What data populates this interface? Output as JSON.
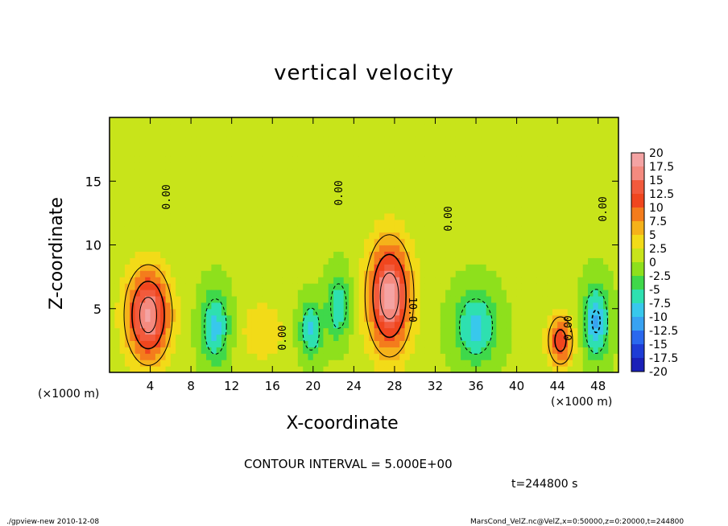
{
  "chart_data": {
    "type": "heatmap",
    "title": "vertical velocity",
    "xlabel": "X-coordinate",
    "ylabel": "Z-coordinate",
    "x_unit_label": "(×1000 m)",
    "y_unit_label": "(×1000 m)",
    "xlim": [
      0,
      50
    ],
    "ylim": [
      0,
      20
    ],
    "x_ticks": [
      4,
      8,
      12,
      16,
      20,
      24,
      28,
      32,
      36,
      40,
      44,
      48
    ],
    "y_ticks": [
      5,
      10,
      15
    ],
    "colorbar": {
      "labels": [
        "20",
        "17.5",
        "15",
        "12.5",
        "10",
        "7.5",
        "5",
        "2.5",
        "0",
        "-2.5",
        "-5",
        "-7.5",
        "-10",
        "-12.5",
        "-15",
        "-17.5",
        "-20"
      ],
      "colors": [
        "#f4a3a3",
        "#f48a7f",
        "#f25a3c",
        "#f0461e",
        "#f47c1c",
        "#f5b21a",
        "#f2db18",
        "#c8e41a",
        "#8ee01c",
        "#3fd84a",
        "#2ee0b0",
        "#38c8ec",
        "#38a2f2",
        "#2a68ee",
        "#1e3cd6",
        "#1a20b8",
        "#5a18c0"
      ]
    },
    "contour_labels": [
      "0.00",
      "0.00",
      "0.00",
      "0.00",
      "0.00",
      "0.00",
      "10.0"
    ],
    "features": [
      {
        "x": 3.8,
        "z": 4.5,
        "value": 17.5,
        "sx": 1.5,
        "sz": 2.5
      },
      {
        "x": 27.5,
        "z": 6.0,
        "value": 18.0,
        "sx": 1.5,
        "sz": 3.0
      },
      {
        "x": 44.3,
        "z": 2.5,
        "value": 12.0,
        "sx": 0.9,
        "sz": 1.4
      },
      {
        "x": 15.0,
        "z": 3.2,
        "value": 4.0,
        "sx": 1.6,
        "sz": 1.8
      },
      {
        "x": 10.4,
        "z": 3.6,
        "value": -9.0,
        "sx": 1.0,
        "sz": 2.0
      },
      {
        "x": 19.8,
        "z": 3.4,
        "value": -8.5,
        "sx": 0.8,
        "sz": 1.6
      },
      {
        "x": 22.5,
        "z": 5.2,
        "value": -8.0,
        "sx": 0.8,
        "sz": 1.8
      },
      {
        "x": 36.0,
        "z": 3.6,
        "value": -9.0,
        "sx": 1.5,
        "sz": 2.0
      },
      {
        "x": 47.8,
        "z": 4.0,
        "value": -11.0,
        "sx": 0.9,
        "sz": 2.0
      }
    ],
    "contour_interval": "CONTOUR INTERVAL = 5.000E+00",
    "time": "t=244800 s"
  },
  "footer": {
    "left": "./gpview-new   2010-12-08",
    "right": "MarsCond_VelZ.nc@VelZ,x=0:50000,z=0:20000,t=244800"
  }
}
